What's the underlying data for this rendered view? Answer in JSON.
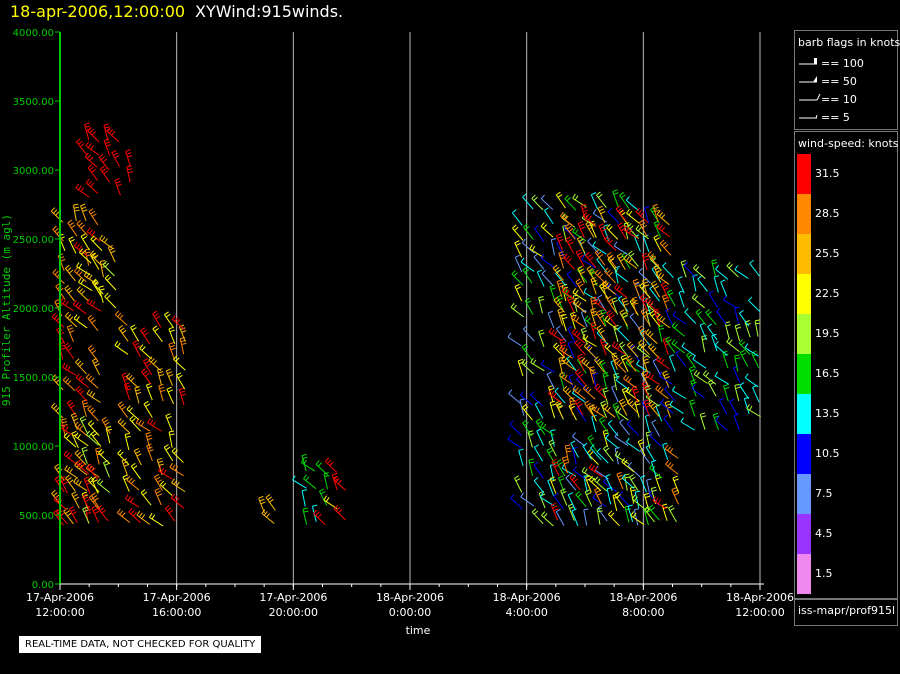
{
  "header": {
    "date_time": "18-apr-2006,12:00:00",
    "product": "XYWind:915winds."
  },
  "disclaimer": "REAL-TIME DATA, NOT CHECKED FOR QUALITY",
  "barb_legend": {
    "title": "barb flags in knots",
    "items": [
      "== 100",
      "== 50",
      "== 10",
      "== 5"
    ]
  },
  "speed_legend": {
    "title": "wind-speed: knots",
    "bins": [
      {
        "label": "31.5",
        "color": "#ff0000"
      },
      {
        "label": "28.5",
        "color": "#ff8800"
      },
      {
        "label": "25.5",
        "color": "#ffbb00"
      },
      {
        "label": "22.5",
        "color": "#ffff00"
      },
      {
        "label": "19.5",
        "color": "#aaff33"
      },
      {
        "label": "16.5",
        "color": "#00dd00"
      },
      {
        "label": "13.5",
        "color": "#00ffff"
      },
      {
        "label": "10.5",
        "color": "#0000ff"
      },
      {
        "label": "7.5",
        "color": "#6699ff"
      },
      {
        "label": "4.5",
        "color": "#9933ff"
      },
      {
        "label": "1.5",
        "color": "#ee88ee"
      }
    ]
  },
  "source_label": "iss-mapr/prof915l",
  "colors": {
    "axis": "#00cc00",
    "grid": "#bbbbbb",
    "title_date": "#ffff00"
  },
  "chart_data": {
    "type": "scatter",
    "title": "18-apr-2006,12:00:00  XYWind:915winds.",
    "xlabel": "time",
    "ylabel": "915 Profiler Altitude (m agl)",
    "ylim": [
      0,
      4000
    ],
    "y_ticks": [
      "0.00",
      "500.00",
      "1000.00",
      "1500.00",
      "2000.00",
      "2500.00",
      "3000.00",
      "3500.00",
      "4000.00"
    ],
    "xlim_hours": [
      0,
      24
    ],
    "x_ticks": [
      {
        "date": "17-Apr-2006",
        "time": "12:00:00"
      },
      {
        "date": "17-Apr-2006",
        "time": "16:00:00"
      },
      {
        "date": "17-Apr-2006",
        "time": "20:00:00"
      },
      {
        "date": "18-Apr-2006",
        "time": "0:00:00"
      },
      {
        "date": "18-Apr-2006",
        "time": "4:00:00"
      },
      {
        "date": "18-Apr-2006",
        "time": "8:00:00"
      },
      {
        "date": "18-Apr-2006",
        "time": "12:00:00"
      }
    ],
    "grid": "vertical",
    "series_description": "wind barbs colored by wind speed (knots)",
    "barb_blocks": [
      {
        "t0": 0.05,
        "t1": 1.7,
        "alt0": 420,
        "alt1": 2700,
        "speeds": [
          31.5,
          28.5,
          25.5,
          22.5
        ]
      },
      {
        "t0": 0.9,
        "t1": 2.7,
        "alt0": 2800,
        "alt1": 3300,
        "speeds": [
          31.5
        ]
      },
      {
        "t0": 1.0,
        "t1": 2.2,
        "alt0": 2000,
        "alt1": 2500,
        "speeds": [
          22.5,
          19.5,
          25.5
        ]
      },
      {
        "t0": 0.2,
        "t1": 2.0,
        "alt0": 420,
        "alt1": 1200,
        "speeds": [
          31.5,
          28.5,
          25.5,
          22.5,
          19.5
        ]
      },
      {
        "t0": 2.3,
        "t1": 4.6,
        "alt0": 420,
        "alt1": 1950,
        "speeds": [
          31.5,
          28.5,
          25.5,
          22.5
        ]
      },
      {
        "t0": 7.0,
        "t1": 7.6,
        "alt0": 420,
        "alt1": 600,
        "speeds": [
          25.5,
          22.5
        ]
      },
      {
        "t0": 8.4,
        "t1": 10.1,
        "alt0": 420,
        "alt1": 900,
        "speeds": [
          31.5,
          22.5,
          16.5,
          13.5
        ]
      },
      {
        "t0": 15.8,
        "t1": 20.9,
        "alt0": 420,
        "alt1": 2800,
        "speeds": [
          13.5,
          10.5,
          16.5,
          19.5,
          7.5,
          22.5
        ]
      },
      {
        "t0": 17.2,
        "t1": 21.2,
        "alt0": 1200,
        "alt1": 2700,
        "speeds": [
          31.5,
          28.5,
          25.5
        ]
      },
      {
        "t0": 17.0,
        "t1": 21.5,
        "alt0": 420,
        "alt1": 1000,
        "speeds": [
          31.5,
          28.5,
          22.5,
          19.5,
          13.5
        ]
      },
      {
        "t0": 21.0,
        "t1": 24.3,
        "alt0": 1100,
        "alt1": 2300,
        "speeds": [
          13.5,
          19.5,
          10.5,
          16.5
        ]
      }
    ]
  }
}
